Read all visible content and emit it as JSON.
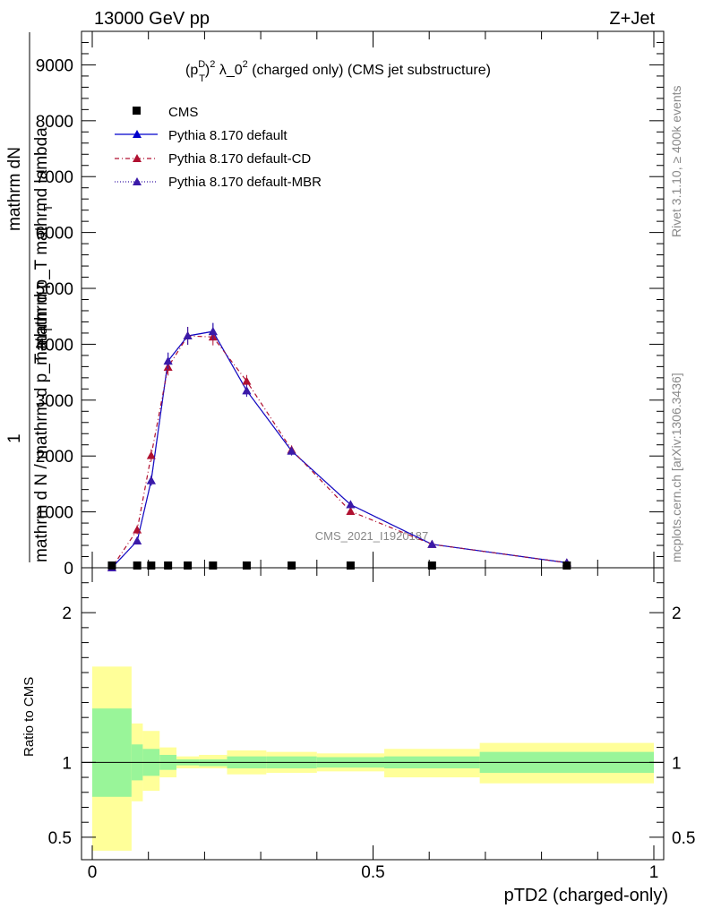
{
  "header": {
    "energy": "13000 GeV pp",
    "process": "Z+Jet"
  },
  "chart_data": [
    {
      "type": "line",
      "title": "(p_T^D)^2 λ_0^2 (charged only) (CMS jet substructure)",
      "title_parts": {
        "a": "(p",
        "sup1": "D",
        "sub1": "T",
        "b": ")",
        "sup2": "2",
        "c": " λ_0",
        "sup3": "2",
        "d": " (charged only) (CMS jet substructure)"
      },
      "ylabel_lines": [
        "mathrm dN",
        "mathrm d p_T mathrmd lambda",
        "1",
        "mathrm d N / mathrm d p_T mathrm"
      ],
      "ylabel_subs": [
        "T",
        "T"
      ],
      "xlabel": "pTD2 (charged-only)",
      "xlim": [
        0,
        1
      ],
      "ylim": [
        0,
        9600
      ],
      "yticks": [
        0,
        1000,
        2000,
        3000,
        4000,
        5000,
        6000,
        7000,
        8000,
        9000
      ],
      "ytick_labels": [
        "0",
        "1000",
        "2000",
        "3000",
        "4000",
        "5000",
        "6000",
        "7000",
        "8000",
        "9000"
      ],
      "watermark": "CMS_2021_I1920187",
      "side_left": "Rivet 3.1.10, ≥ 400k events",
      "side_right": "mcplots.cern.ch [arXiv:1306.3436]",
      "cms": {
        "name": "CMS",
        "x": [
          0.035,
          0.08,
          0.105,
          0.135,
          0.17,
          0.215,
          0.275,
          0.355,
          0.46,
          0.605,
          0.845
        ],
        "y": [
          8,
          8,
          8,
          8,
          8,
          8,
          8,
          8,
          8,
          8,
          8
        ]
      },
      "series": [
        {
          "name": "Pythia 8.170 default",
          "color": "#0000cc",
          "style": "solid",
          "x": [
            0.035,
            0.08,
            0.105,
            0.135,
            0.17,
            0.215,
            0.275,
            0.355,
            0.46,
            0.605,
            0.845
          ],
          "y": [
            0,
            480,
            1560,
            3700,
            4150,
            4230,
            3170,
            2090,
            1130,
            420,
            90
          ],
          "err": [
            0,
            60,
            90,
            150,
            160,
            150,
            110,
            80,
            50,
            25,
            15
          ]
        },
        {
          "name": "Pythia 8.170 default-CD",
          "color": "#b01030",
          "style": "dashed",
          "x": [
            0.035,
            0.08,
            0.105,
            0.135,
            0.17,
            0.215,
            0.275,
            0.355,
            0.46,
            0.605,
            0.845
          ],
          "y": [
            0,
            680,
            2010,
            3590,
            4150,
            4130,
            3340,
            2110,
            1010,
            420,
            90
          ],
          "err": [
            0,
            80,
            110,
            150,
            160,
            150,
            110,
            80,
            50,
            25,
            15
          ]
        },
        {
          "name": "Pythia 8.170 default-MBR",
          "color": "#3b1aa8",
          "style": "dotted",
          "x": [
            0.035,
            0.08,
            0.105,
            0.135,
            0.17,
            0.215,
            0.275,
            0.355,
            0.46,
            0.605,
            0.845
          ],
          "y": [
            0,
            480,
            1560,
            3700,
            4150,
            4230,
            3170,
            2090,
            1130,
            420,
            90
          ],
          "err": [
            0,
            60,
            90,
            150,
            160,
            150,
            110,
            80,
            50,
            25,
            15
          ]
        }
      ]
    },
    {
      "type": "area",
      "ylabel": "Ratio to CMS",
      "xlim": [
        0,
        1
      ],
      "ylim": [
        0.35,
        2.3
      ],
      "yticks": [
        0.5,
        1,
        2
      ],
      "ytick_labels": [
        "0.5",
        "1",
        "2"
      ],
      "xticks": [
        0,
        0.5,
        1
      ],
      "xtick_labels": [
        "0",
        "0.5",
        "1"
      ],
      "bins": [
        {
          "x0": 0.0,
          "x1": 0.07,
          "yellow": [
            0.41,
            1.64
          ],
          "green": [
            0.77,
            1.36
          ]
        },
        {
          "x0": 0.07,
          "x1": 0.09,
          "yellow": [
            0.74,
            1.26
          ],
          "green": [
            0.88,
            1.12
          ]
        },
        {
          "x0": 0.09,
          "x1": 0.12,
          "yellow": [
            0.81,
            1.21
          ],
          "green": [
            0.91,
            1.09
          ]
        },
        {
          "x0": 0.12,
          "x1": 0.15,
          "yellow": [
            0.9,
            1.1
          ],
          "green": [
            0.95,
            1.05
          ]
        },
        {
          "x0": 0.15,
          "x1": 0.19,
          "yellow": [
            0.96,
            1.04
          ],
          "green": [
            0.98,
            1.02
          ]
        },
        {
          "x0": 0.19,
          "x1": 0.24,
          "yellow": [
            0.96,
            1.05
          ],
          "green": [
            0.975,
            1.02
          ]
        },
        {
          "x0": 0.24,
          "x1": 0.31,
          "yellow": [
            0.92,
            1.08
          ],
          "green": [
            0.96,
            1.04
          ]
        },
        {
          "x0": 0.31,
          "x1": 0.4,
          "yellow": [
            0.93,
            1.07
          ],
          "green": [
            0.96,
            1.04
          ]
        },
        {
          "x0": 0.4,
          "x1": 0.52,
          "yellow": [
            0.94,
            1.06
          ],
          "green": [
            0.965,
            1.035
          ]
        },
        {
          "x0": 0.52,
          "x1": 0.69,
          "yellow": [
            0.9,
            1.09
          ],
          "green": [
            0.96,
            1.04
          ]
        },
        {
          "x0": 0.69,
          "x1": 1.0,
          "yellow": [
            0.86,
            1.13
          ],
          "green": [
            0.93,
            1.07
          ]
        }
      ],
      "ratio_line": 1
    }
  ]
}
